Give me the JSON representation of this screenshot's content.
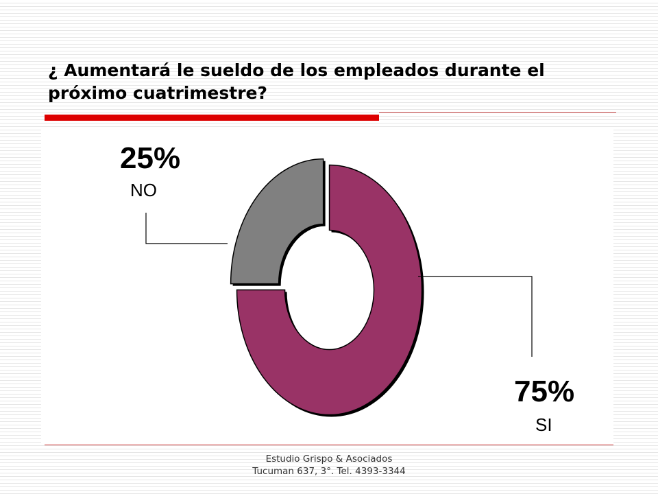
{
  "slide": {
    "title": "¿ Aumentará le sueldo de los empleados durante el próximo cuatrimestre?",
    "accent_color": "#dd0000",
    "footer": {
      "line1": "Estudio Grispo & Asociados",
      "line2": "Tucuman 637, 3°. Tel. 4393-3344"
    }
  },
  "chart_data": {
    "type": "pie",
    "variant": "donut",
    "title": "",
    "slices": [
      {
        "label": "NO",
        "value": 25,
        "value_label": "25%",
        "color": "#808080"
      },
      {
        "label": "SI",
        "value": 75,
        "value_label": "75%",
        "color": "#993366"
      }
    ]
  }
}
